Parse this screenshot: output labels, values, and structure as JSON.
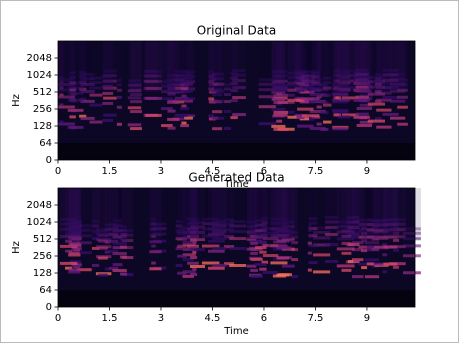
{
  "chart_data": [
    {
      "type": "spectrogram",
      "title": "Original Data",
      "xlabel": "Time",
      "ylabel": "Hz",
      "xlim": [
        0,
        10.4
      ],
      "xticks": [
        0,
        1.5,
        3,
        4.5,
        6,
        7.5,
        9
      ],
      "ylim": [
        0,
        4096
      ],
      "yticks": [
        0,
        64,
        128,
        256,
        512,
        1024,
        2048
      ],
      "yscale": "symlog",
      "linthresh": 64
    },
    {
      "type": "spectrogram",
      "title": "Generated Data",
      "xlabel": "Time",
      "ylabel": "Hz",
      "xlim": [
        0,
        10.4
      ],
      "xticks": [
        0,
        1.5,
        3,
        4.5,
        6,
        7.5,
        9
      ],
      "ylim": [
        0,
        4096
      ],
      "yticks": [
        0,
        64,
        128,
        256,
        512,
        1024,
        2048
      ],
      "yscale": "symlog",
      "linthresh": 64
    }
  ]
}
